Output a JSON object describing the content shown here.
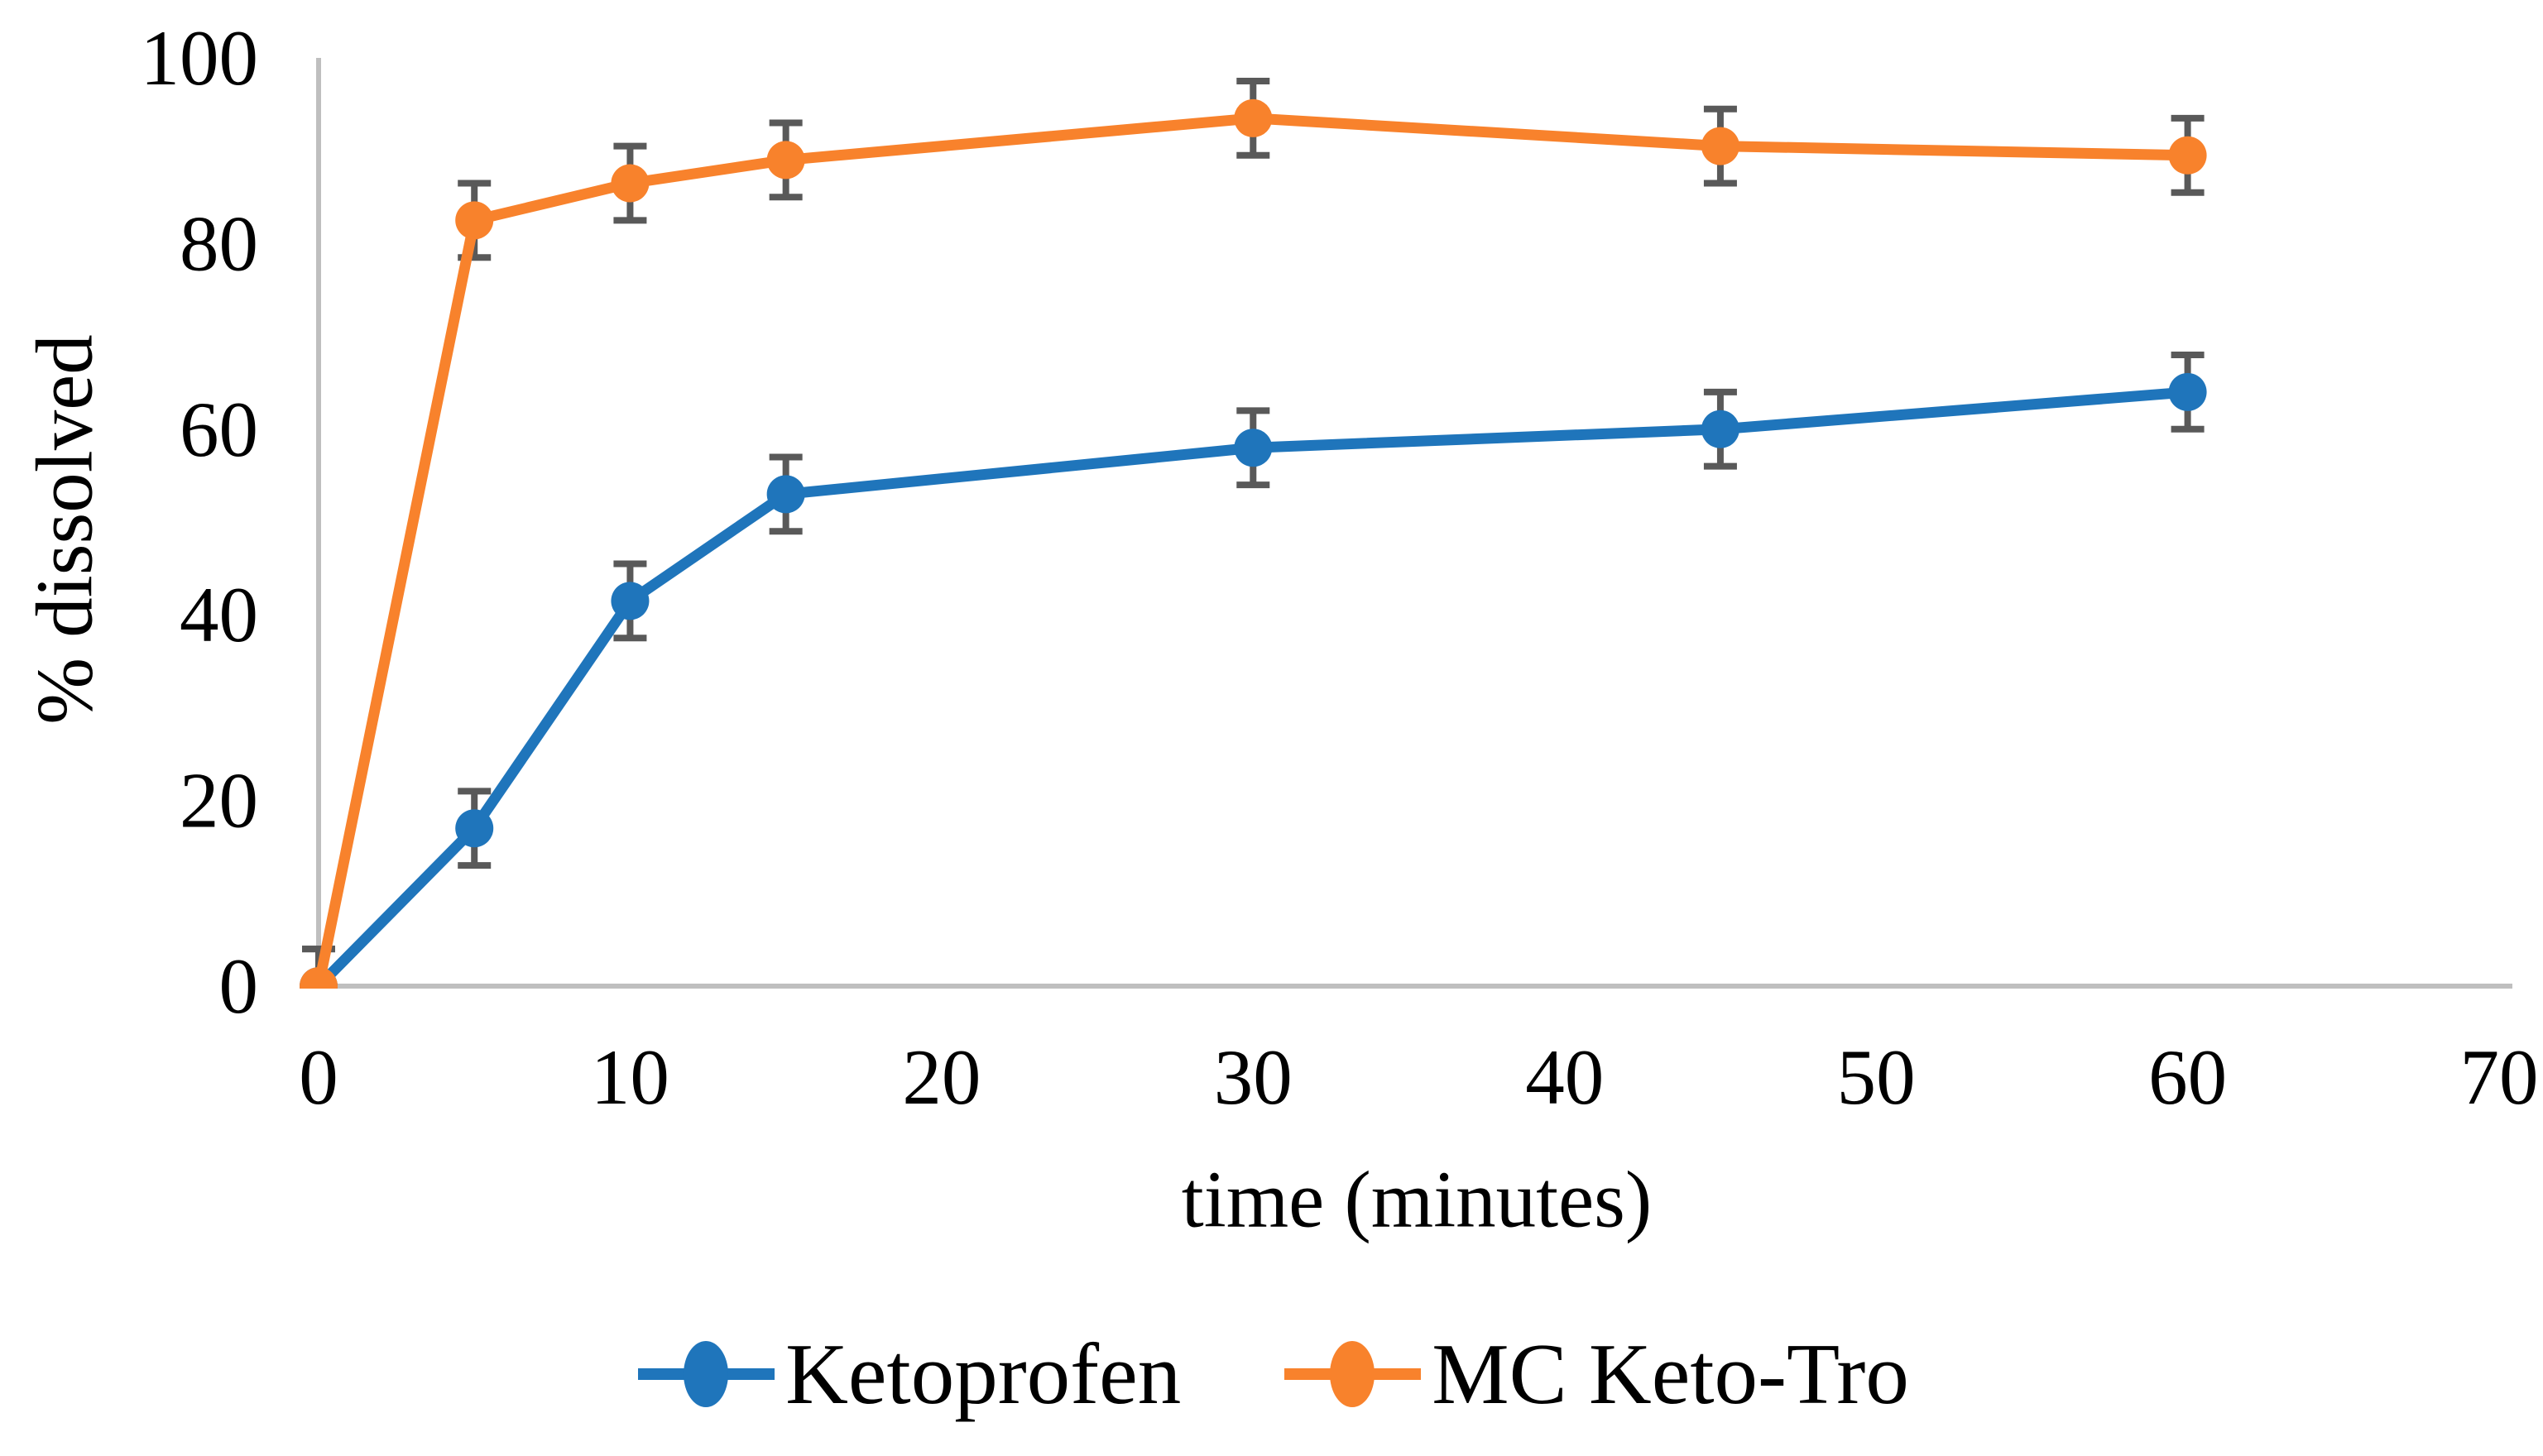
{
  "chart_data": {
    "type": "line",
    "x": [
      0,
      5,
      10,
      15,
      30,
      45,
      60
    ],
    "series": [
      {
        "name": "Ketoprofen",
        "color": "#1F75BB",
        "values": [
          0,
          17,
          41.5,
          53,
          58,
          60,
          64
        ],
        "errors": [
          4,
          4,
          4,
          4,
          4,
          4,
          4
        ]
      },
      {
        "name": "MC Keto-Tro",
        "color": "#F8822C",
        "values": [
          0,
          82.5,
          86.5,
          89,
          93.5,
          90.5,
          89.5
        ],
        "errors": [
          4,
          4,
          4,
          4,
          4,
          4,
          4
        ]
      }
    ],
    "xlabel": "time (minutes)",
    "ylabel": "% dissolved",
    "xlim": [
      0,
      70
    ],
    "ylim": [
      0,
      100
    ],
    "xticks": [
      0,
      10,
      20,
      30,
      40,
      50,
      60,
      70
    ],
    "yticks": [
      0,
      20,
      40,
      60,
      80,
      100
    ],
    "grid": false,
    "legend_position": "bottom",
    "error_bar_color": "#595959",
    "axis_line_color": "#BFBFBF",
    "marker": "circle"
  }
}
